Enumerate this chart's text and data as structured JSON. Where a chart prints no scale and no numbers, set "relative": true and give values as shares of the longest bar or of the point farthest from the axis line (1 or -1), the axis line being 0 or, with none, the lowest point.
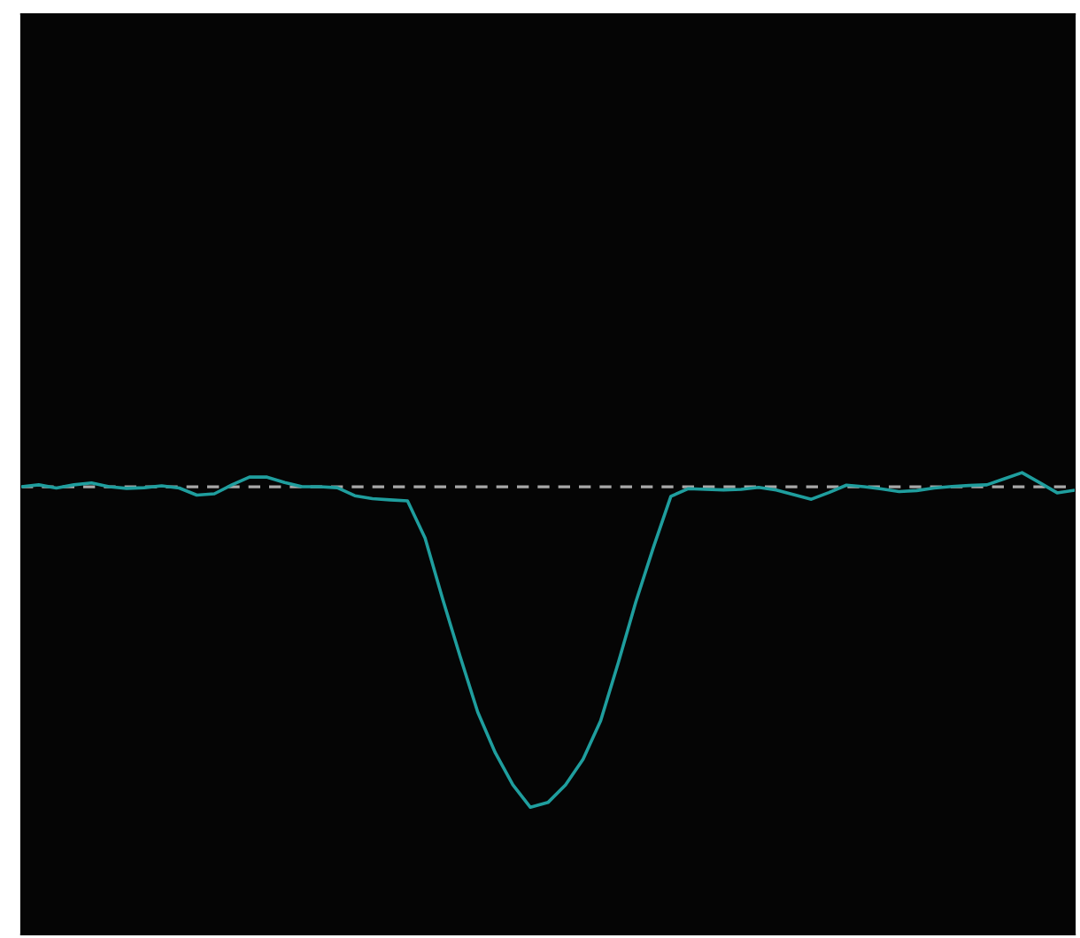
{
  "chart_data": {
    "type": "line",
    "relative": true,
    "legend": false,
    "marker": "none",
    "line_style": "solid",
    "categories": [
      null,
      null,
      null,
      null,
      null,
      null,
      null,
      null,
      null,
      null,
      null,
      null,
      null,
      null,
      null,
      null,
      null,
      null,
      null,
      null,
      null,
      null,
      null,
      null,
      null,
      null,
      null,
      null,
      null,
      null,
      null,
      null,
      null,
      null,
      null,
      null,
      null,
      null,
      null,
      null,
      null,
      null,
      null,
      null,
      null,
      null,
      null,
      null,
      null,
      null,
      null,
      null,
      null,
      null,
      null,
      null,
      null,
      null,
      null,
      null,
      null
    ],
    "series": [
      {
        "color": "#1f9e9e",
        "values": [
          0,
          0.006,
          -0.004,
          0.006,
          0.012,
          0,
          -0.005,
          -0.003,
          0.003,
          -0.004,
          -0.026,
          -0.022,
          0.006,
          0.03,
          0.03,
          0.013,
          0,
          0,
          -0.003,
          -0.028,
          -0.037,
          -0.041,
          -0.044,
          -0.16,
          -0.35,
          -0.53,
          -0.703,
          -0.83,
          -0.93,
          -1,
          -0.985,
          -0.93,
          -0.85,
          -0.73,
          -0.55,
          -0.36,
          -0.19,
          -0.03,
          -0.006,
          -0.008,
          -0.01,
          -0.008,
          -0.002,
          -0.01,
          -0.025,
          -0.039,
          -0.018,
          0.005,
          0,
          -0.007,
          -0.015,
          -0.012,
          -0.004,
          0.001,
          0.004,
          0.006,
          0.025,
          0.044,
          0.013,
          -0.019,
          -0.011
        ]
      }
    ],
    "ref_lines": [
      {
        "axis": "y",
        "value": 0,
        "color": "#a8a8a8",
        "line_style": "dashed"
      }
    ]
  }
}
